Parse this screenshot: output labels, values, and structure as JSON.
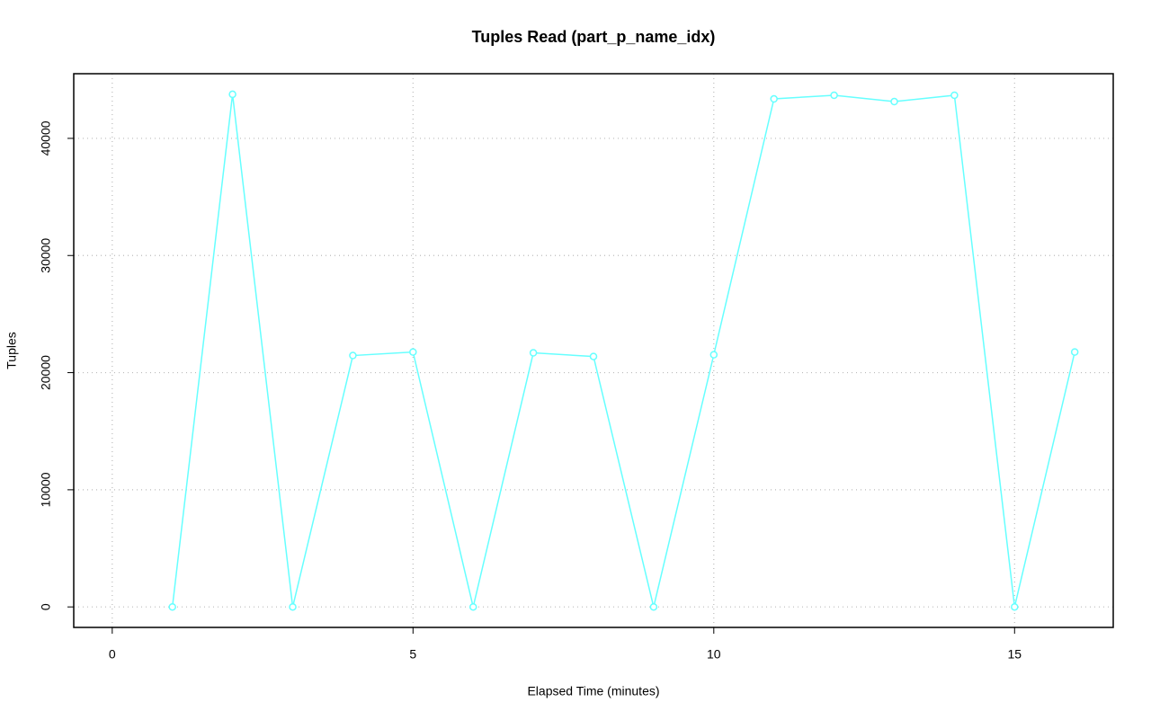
{
  "chart_data": {
    "type": "line",
    "title": "Tuples Read (part_p_name_idx)",
    "xlabel": "Elapsed Time (minutes)",
    "ylabel": "Tuples",
    "x": [
      1,
      2,
      3,
      4,
      5,
      6,
      7,
      8,
      9,
      10,
      11,
      12,
      13,
      14,
      15,
      16
    ],
    "series": [
      {
        "color": "#66ffff",
        "values": [
          0,
          43760,
          0,
          21460,
          21760,
          0,
          21690,
          21380,
          0,
          21530,
          43370,
          43680,
          43140,
          43680,
          0,
          21760
        ]
      }
    ],
    "xlim": [
      -0.64,
      16.64
    ],
    "ylim": [
      -1750,
      45520
    ],
    "xticks": [
      0,
      5,
      10,
      15
    ],
    "yticks": [
      0,
      10000,
      20000,
      30000,
      40000
    ],
    "grid": true
  }
}
